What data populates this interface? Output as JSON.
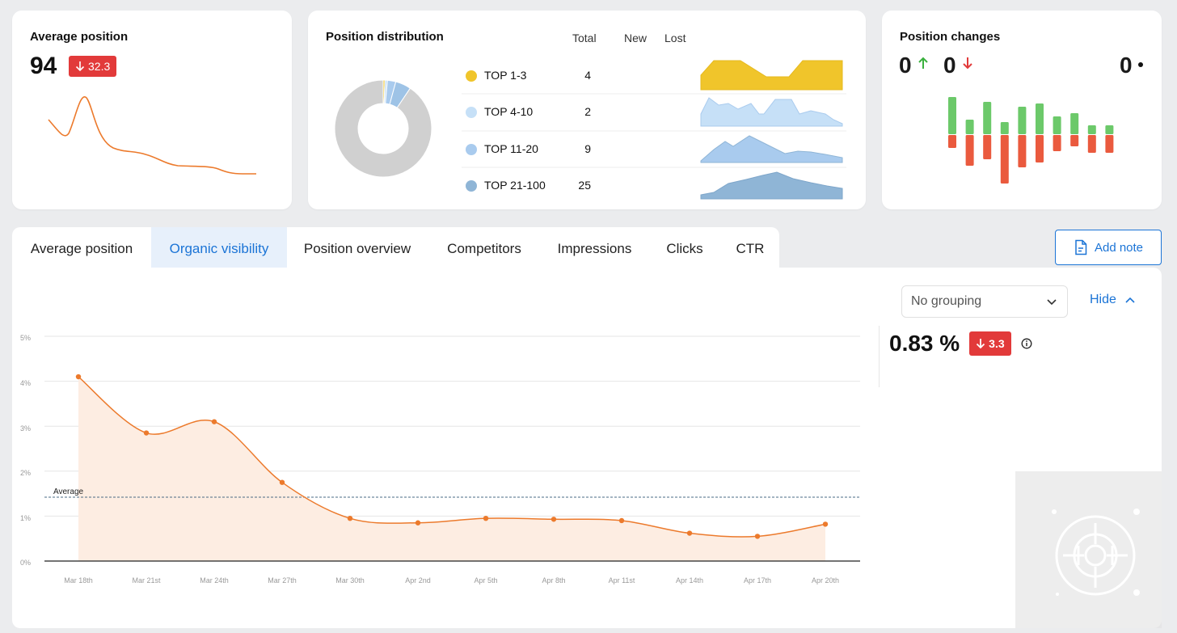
{
  "avg_card": {
    "title": "Average position",
    "value": "94",
    "delta": "32.3",
    "sparkline": [
      0.55,
      0.62,
      0.42,
      0.3,
      0.22,
      0.2,
      0.16,
      0.13,
      0.1,
      0.1,
      0.07,
      0.05,
      0.05
    ]
  },
  "dist_card": {
    "title": "Position distribution",
    "columns": {
      "total": "Total",
      "new": "New",
      "lost": "Lost"
    },
    "rows": [
      {
        "label": "TOP 1-3",
        "total": "4",
        "color": "#f0c52b"
      },
      {
        "label": "TOP 4-10",
        "total": "2",
        "color": "#c6e0f7"
      },
      {
        "label": "TOP 11-20",
        "total": "9",
        "color": "#a9cbee"
      },
      {
        "label": "TOP 21-100",
        "total": "25",
        "color": "#8fb5d6"
      }
    ],
    "donut": [
      {
        "value": 0.6,
        "color": "#f0c52b"
      },
      {
        "value": 0.8,
        "color": "#c6e0f7"
      },
      {
        "value": 2.8,
        "color": "#a9cbee"
      },
      {
        "value": 5.2,
        "color": "#9ec3e6"
      },
      {
        "value": 90.6,
        "color": "#d0d0d0"
      }
    ]
  },
  "changes_card": {
    "title": "Position changes",
    "up": "0",
    "down": "0",
    "same": "0",
    "bars_up": [
      46,
      18,
      40,
      15,
      34,
      38,
      22,
      26,
      11,
      11
    ],
    "bars_down": [
      16,
      38,
      30,
      60,
      40,
      34,
      20,
      14,
      22,
      22
    ]
  },
  "tabs": [
    {
      "label": "Average position",
      "active": false
    },
    {
      "label": "Organic visibility",
      "active": true
    },
    {
      "label": "Position overview",
      "active": false
    },
    {
      "label": "Competitors",
      "active": false
    },
    {
      "label": "Impressions",
      "active": false
    },
    {
      "label": "Clicks",
      "active": false
    },
    {
      "label": "CTR",
      "active": false
    }
  ],
  "add_note": "Add note",
  "grouping": {
    "selected": "No grouping"
  },
  "hide_label": "Hide",
  "summary": {
    "value": "0.83 %",
    "delta": "3.3"
  },
  "chart_data": {
    "type": "area",
    "x": [
      "Mar 18th",
      "Mar 21st",
      "Mar 24th",
      "Mar 27th",
      "Mar 30th",
      "Apr 2nd",
      "Apr 5th",
      "Apr 8th",
      "Apr 11st",
      "Apr 14th",
      "Apr 17th",
      "Apr 20th"
    ],
    "series": [
      {
        "values": [
          4.1,
          2.85,
          3.1,
          1.75,
          0.95,
          0.85,
          0.95,
          0.93,
          0.9,
          0.62,
          0.55,
          0.82
        ]
      }
    ],
    "y_ticks": [
      "0%",
      "1%",
      "2%",
      "3%",
      "4%",
      "5%"
    ],
    "ylim": [
      0,
      5
    ],
    "average": {
      "label": "Average",
      "value": 1.42
    },
    "color": "#ec7a2c",
    "grid": true
  }
}
